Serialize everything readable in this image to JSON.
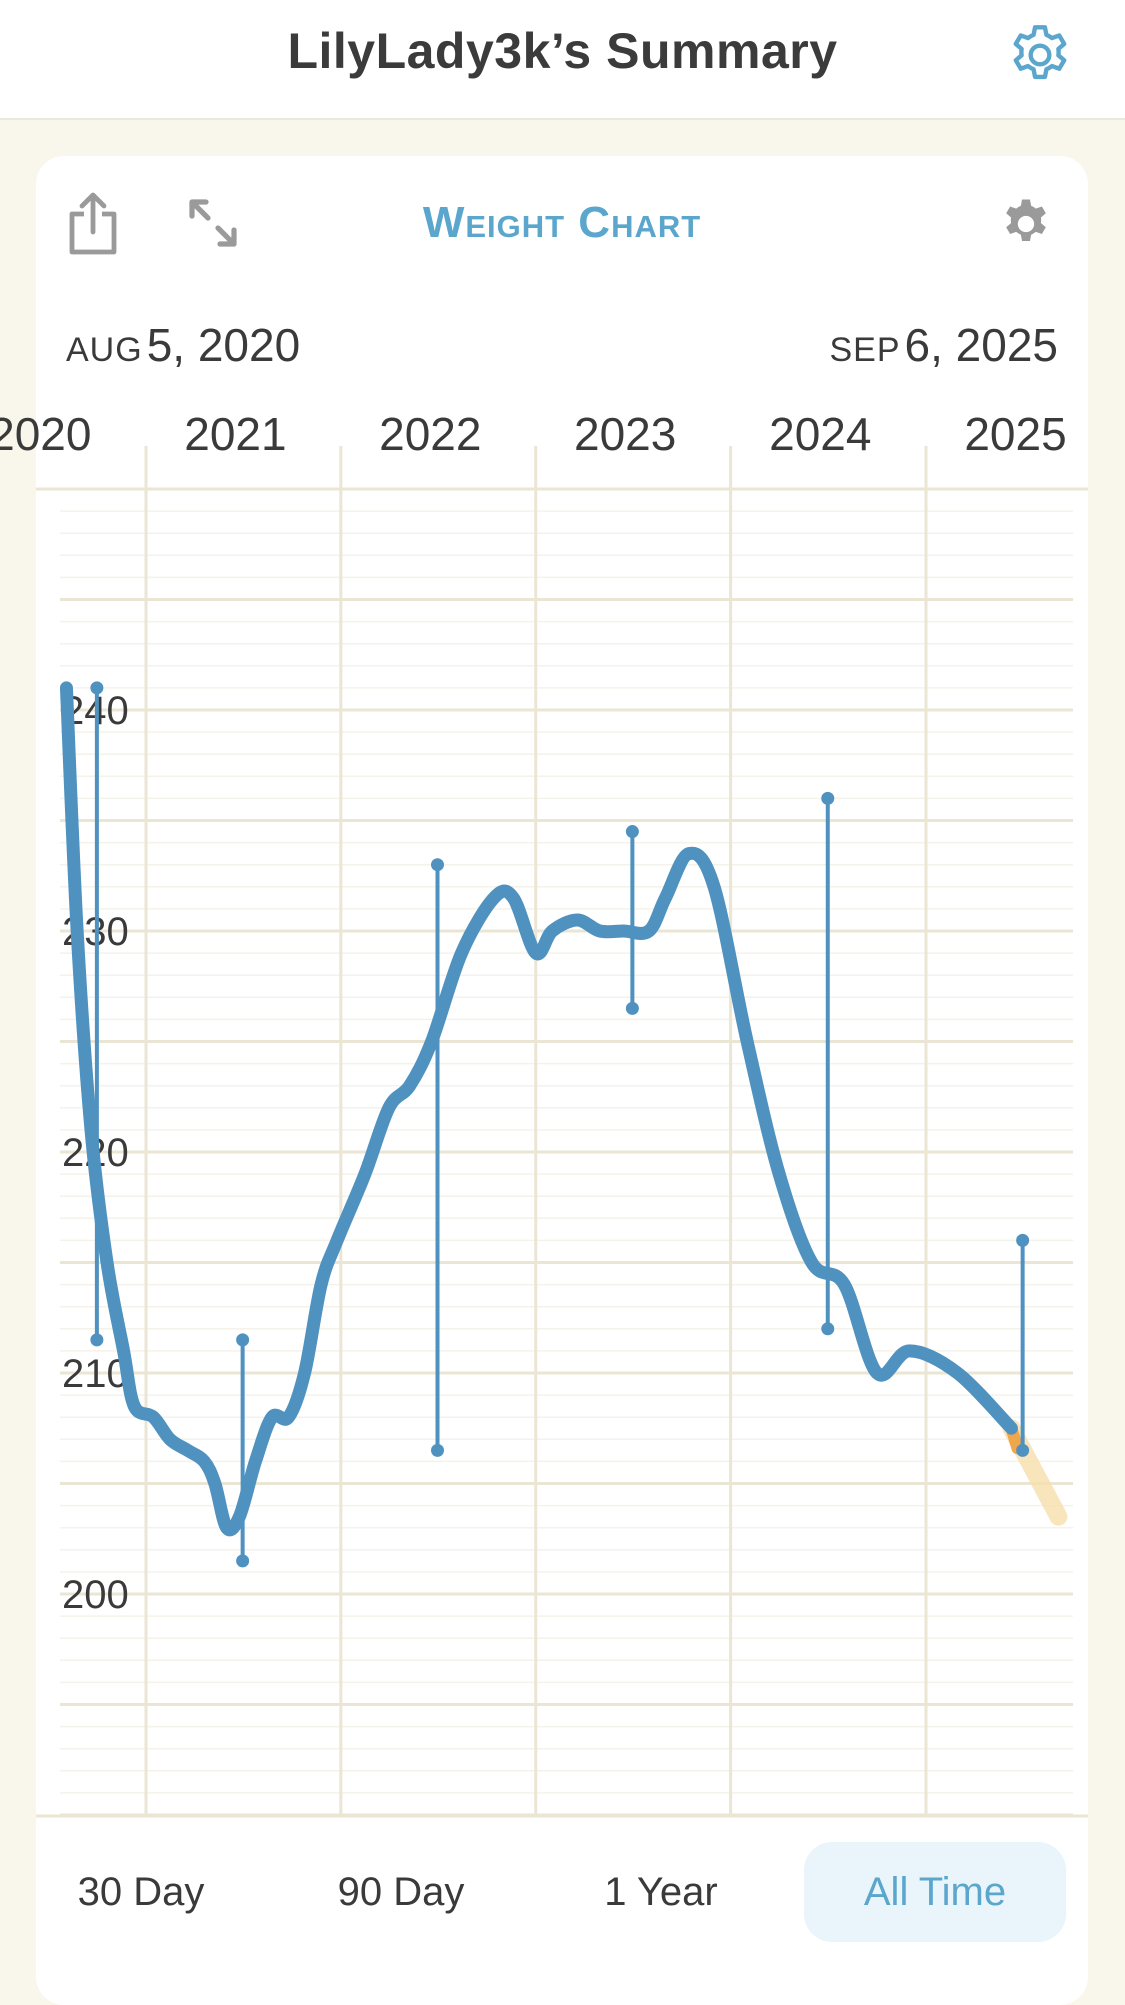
{
  "header": {
    "title": "LilyLady3k’s Summary"
  },
  "card": {
    "chart_title": "Weight Chart",
    "start_date": {
      "month": "AUG",
      "rest": "5, 2020"
    },
    "end_date": {
      "month": "SEP",
      "rest": "6, 2025"
    }
  },
  "range_options": [
    {
      "label": "30 Day",
      "selected": false
    },
    {
      "label": "90 Day",
      "selected": false
    },
    {
      "label": "1 Year",
      "selected": false
    },
    {
      "label": "All Time",
      "selected": true
    }
  ],
  "colors": {
    "accent": "#5aa6cc",
    "line": "#4f92c0",
    "trend_tail": "#f0a64a",
    "grid": "#ebe5d4",
    "background": "#f9f6ec"
  },
  "icons": [
    "settings-gear-icon",
    "share-icon",
    "expand-icon",
    "chart-settings-gear-icon"
  ],
  "chart_data": {
    "type": "line",
    "title": "Weight Chart",
    "xlabel": "",
    "ylabel": "",
    "x_range": [
      "2020-08-05",
      "2025-09-06"
    ],
    "x_tick_labels": [
      "2020",
      "2021",
      "2022",
      "2023",
      "2024",
      "2025"
    ],
    "x_tick_dates": [
      "2020-01-01",
      "2021-01-01",
      "2022-01-01",
      "2023-01-01",
      "2024-01-01",
      "2025-01-01"
    ],
    "ylim": [
      190,
      250
    ],
    "y_ticks": [
      200,
      210,
      220,
      230,
      240
    ],
    "y_grid_minor": 5,
    "grid": true,
    "series": [
      {
        "values": [
          {
            "x": "2020-08-05",
            "y": 241
          },
          {
            "x": "2020-08-25",
            "y": 230
          },
          {
            "x": "2020-09-20",
            "y": 221
          },
          {
            "x": "2020-10-20",
            "y": 215
          },
          {
            "x": "2020-11-20",
            "y": 211
          },
          {
            "x": "2020-12-10",
            "y": 208.5
          },
          {
            "x": "2021-01-15",
            "y": 208
          },
          {
            "x": "2021-02-15",
            "y": 207
          },
          {
            "x": "2021-03-20",
            "y": 206.5
          },
          {
            "x": "2021-04-20",
            "y": 206
          },
          {
            "x": "2021-05-10",
            "y": 205
          },
          {
            "x": "2021-06-01",
            "y": 203
          },
          {
            "x": "2021-06-25",
            "y": 203.5
          },
          {
            "x": "2021-07-25",
            "y": 206
          },
          {
            "x": "2021-08-25",
            "y": 208
          },
          {
            "x": "2021-09-25",
            "y": 208
          },
          {
            "x": "2021-10-25",
            "y": 210
          },
          {
            "x": "2021-11-25",
            "y": 214
          },
          {
            "x": "2021-12-25",
            "y": 216
          },
          {
            "x": "2022-02-15",
            "y": 219
          },
          {
            "x": "2022-04-01",
            "y": 222
          },
          {
            "x": "2022-05-10",
            "y": 223
          },
          {
            "x": "2022-06-20",
            "y": 225
          },
          {
            "x": "2022-08-15",
            "y": 229
          },
          {
            "x": "2022-10-15",
            "y": 231.5
          },
          {
            "x": "2022-11-20",
            "y": 231.5
          },
          {
            "x": "2023-01-01",
            "y": 229
          },
          {
            "x": "2023-02-01",
            "y": 230
          },
          {
            "x": "2023-03-20",
            "y": 230.5
          },
          {
            "x": "2023-05-01",
            "y": 230
          },
          {
            "x": "2023-06-15",
            "y": 230
          },
          {
            "x": "2023-08-01",
            "y": 230
          },
          {
            "x": "2023-09-01",
            "y": 231.5
          },
          {
            "x": "2023-10-15",
            "y": 233.5
          },
          {
            "x": "2023-12-01",
            "y": 232
          },
          {
            "x": "2024-02-01",
            "y": 225
          },
          {
            "x": "2024-04-01",
            "y": 219
          },
          {
            "x": "2024-06-01",
            "y": 215
          },
          {
            "x": "2024-08-01",
            "y": 214
          },
          {
            "x": "2024-10-01",
            "y": 210
          },
          {
            "x": "2024-12-01",
            "y": 211
          },
          {
            "x": "2025-03-01",
            "y": 210
          },
          {
            "x": "2025-06-10",
            "y": 207.5
          }
        ]
      },
      {
        "values": [
          {
            "x": "2025-06-10",
            "y": 207.5
          },
          {
            "x": "2025-09-06",
            "y": 203.5
          }
        ]
      }
    ],
    "range_bars": [
      {
        "x": "2020-10-01",
        "low": 211.5,
        "high": 241
      },
      {
        "x": "2021-07-01",
        "low": 201.5,
        "high": 211.5
      },
      {
        "x": "2022-07-01",
        "low": 206.5,
        "high": 233
      },
      {
        "x": "2023-07-01",
        "low": 226.5,
        "high": 234.5
      },
      {
        "x": "2024-07-01",
        "low": 212,
        "high": 236
      },
      {
        "x": "2025-07-01",
        "low": 206.5,
        "high": 216
      }
    ]
  }
}
